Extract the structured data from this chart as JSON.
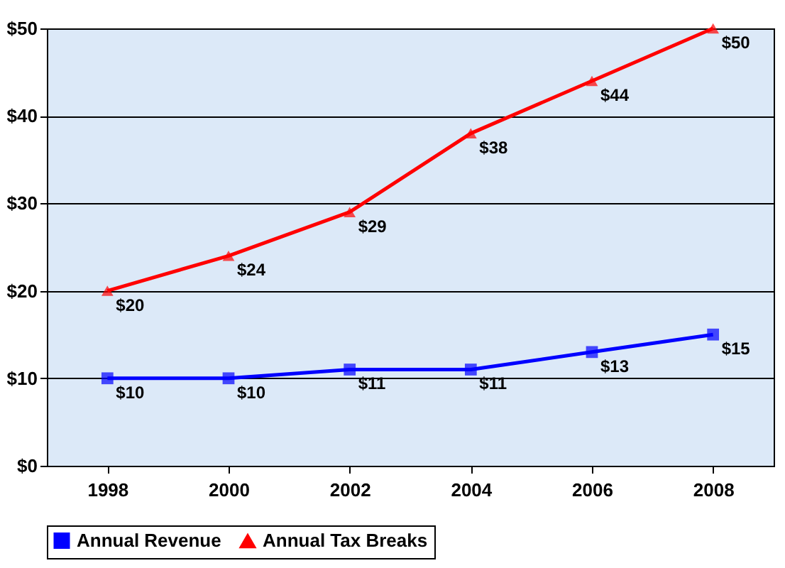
{
  "chart_data": {
    "type": "line",
    "categories": [
      "1998",
      "2000",
      "2002",
      "2004",
      "2006",
      "2008"
    ],
    "series": [
      {
        "name": "Annual Revenue",
        "color": "#0000ff",
        "marker": "square",
        "values": [
          10,
          10,
          11,
          11,
          13,
          15
        ],
        "value_labels": [
          "$10",
          "$10",
          "$11",
          "$11",
          "$13",
          "$15"
        ]
      },
      {
        "name": "Annual Tax Breaks",
        "color": "#ff0000",
        "marker": "triangle",
        "values": [
          20,
          24,
          29,
          38,
          44,
          50
        ],
        "value_labels": [
          "$20",
          "$24",
          "$29",
          "$38",
          "$44",
          "$50"
        ]
      }
    ],
    "ylim": [
      0,
      50
    ],
    "yticks": [
      {
        "value": 0,
        "label": "$0"
      },
      {
        "value": 10,
        "label": "$10"
      },
      {
        "value": 20,
        "label": "$20"
      },
      {
        "value": 30,
        "label": "$30"
      },
      {
        "value": 40,
        "label": "$40"
      },
      {
        "value": 50,
        "label": "$50"
      }
    ],
    "grid": "y",
    "legend": "bottom"
  }
}
